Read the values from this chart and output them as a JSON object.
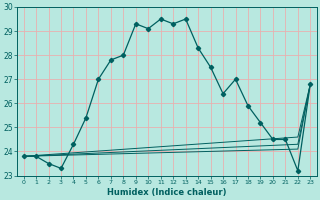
{
  "xlabel": "Humidex (Indice chaleur)",
  "bg_color": "#b8e8e0",
  "grid_color": "#e8b0b0",
  "line_color": "#006060",
  "xlim": [
    -0.5,
    23.5
  ],
  "ylim": [
    23,
    30
  ],
  "yticks": [
    23,
    24,
    25,
    26,
    27,
    28,
    29,
    30
  ],
  "xticks": [
    0,
    1,
    2,
    3,
    4,
    5,
    6,
    7,
    8,
    9,
    10,
    11,
    12,
    13,
    14,
    15,
    16,
    17,
    18,
    19,
    20,
    21,
    22,
    23
  ],
  "series1": [
    23.8,
    23.8,
    23.5,
    23.3,
    24.3,
    25.4,
    27.0,
    27.8,
    28.0,
    29.3,
    29.1,
    29.5,
    29.3,
    29.5,
    28.3,
    27.5,
    26.4,
    27.0,
    25.9,
    25.2,
    24.5,
    24.5,
    23.2,
    26.8
  ],
  "line2_x": [
    0,
    22,
    23
  ],
  "line2_y": [
    23.8,
    24.1,
    26.8
  ],
  "line3_x": [
    0,
    22,
    23
  ],
  "line3_y": [
    23.8,
    24.3,
    26.8
  ],
  "line4_x": [
    0,
    22,
    23
  ],
  "line4_y": [
    23.8,
    24.6,
    26.8
  ],
  "figsize": [
    3.2,
    2.0
  ],
  "dpi": 100
}
